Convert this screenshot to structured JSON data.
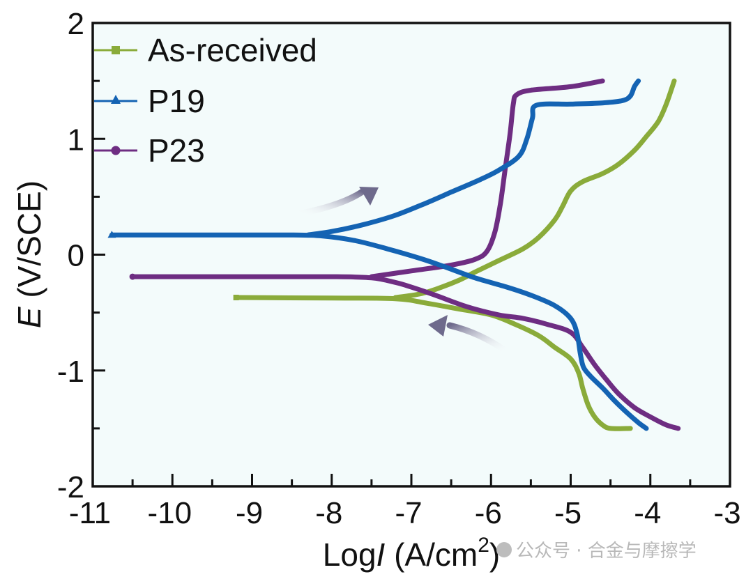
{
  "chart_data": {
    "type": "line",
    "title": "",
    "xlabel": "LogI (A/cm2)",
    "xlabel_parts": {
      "prefix": "Log",
      "italic": "I",
      "suffix": " (A/cm",
      "sup": "2",
      "close": ")"
    },
    "ylabel": "E (V/SCE)",
    "ylabel_parts": {
      "italic": "E",
      "rest": " (V/SCE)"
    },
    "xlim": [
      -11,
      -3
    ],
    "ylim": [
      -2,
      2
    ],
    "xticks": [
      "-11",
      "-10",
      "-9",
      "-8",
      "-7",
      "-6",
      "-5",
      "-4",
      "-3"
    ],
    "yticks": [
      "2",
      "1",
      "0",
      "-1",
      "-2"
    ],
    "grid": false,
    "legend_position": "top-left",
    "annotations": [
      "anodic-scan-arrow (up-right)",
      "cathodic-scan-arrow (left)"
    ],
    "series": [
      {
        "name": "As-received",
        "color": "#8aab3a",
        "marker": "square",
        "start_point": [
          -9.2,
          -0.37
        ],
        "cathodic": [
          [
            -9.2,
            -0.37
          ],
          [
            -8.0,
            -0.375
          ],
          [
            -7.2,
            -0.38
          ],
          [
            -6.8,
            -0.42
          ],
          [
            -6.4,
            -0.47
          ],
          [
            -6.0,
            -0.52
          ],
          [
            -5.7,
            -0.6
          ],
          [
            -5.4,
            -0.7
          ],
          [
            -5.2,
            -0.8
          ],
          [
            -5.0,
            -0.9
          ],
          [
            -4.9,
            -1.02
          ],
          [
            -4.85,
            -1.15
          ],
          [
            -4.78,
            -1.3
          ],
          [
            -4.7,
            -1.4
          ],
          [
            -4.6,
            -1.47
          ],
          [
            -4.5,
            -1.5
          ],
          [
            -4.25,
            -1.5
          ]
        ],
        "anodic": [
          [
            -7.2,
            -0.37
          ],
          [
            -6.9,
            -0.34
          ],
          [
            -6.7,
            -0.3
          ],
          [
            -6.4,
            -0.22
          ],
          [
            -6.2,
            -0.15
          ],
          [
            -5.9,
            -0.05
          ],
          [
            -5.6,
            0.05
          ],
          [
            -5.4,
            0.15
          ],
          [
            -5.2,
            0.3
          ],
          [
            -5.1,
            0.42
          ],
          [
            -5.0,
            0.55
          ],
          [
            -4.85,
            0.63
          ],
          [
            -4.6,
            0.7
          ],
          [
            -4.4,
            0.78
          ],
          [
            -4.2,
            0.9
          ],
          [
            -4.05,
            1.02
          ],
          [
            -3.9,
            1.15
          ],
          [
            -3.8,
            1.3
          ],
          [
            -3.7,
            1.5
          ]
        ]
      },
      {
        "name": "P19",
        "color": "#1463b3",
        "marker": "triangle",
        "start_point": [
          -10.76,
          0.17
        ],
        "cathodic": [
          [
            -10.76,
            0.17
          ],
          [
            -9.5,
            0.17
          ],
          [
            -8.5,
            0.17
          ],
          [
            -8.1,
            0.16
          ],
          [
            -7.7,
            0.12
          ],
          [
            -7.3,
            0.05
          ],
          [
            -6.9,
            -0.03
          ],
          [
            -6.6,
            -0.1
          ],
          [
            -6.2,
            -0.2
          ],
          [
            -5.8,
            -0.28
          ],
          [
            -5.5,
            -0.35
          ],
          [
            -5.2,
            -0.44
          ],
          [
            -5.0,
            -0.55
          ],
          [
            -4.92,
            -0.68
          ],
          [
            -4.88,
            -0.85
          ],
          [
            -4.84,
            -0.97
          ],
          [
            -4.75,
            -1.05
          ],
          [
            -4.6,
            -1.15
          ],
          [
            -4.45,
            -1.26
          ],
          [
            -4.3,
            -1.36
          ],
          [
            -4.15,
            -1.45
          ],
          [
            -4.05,
            -1.5
          ]
        ],
        "anodic": [
          [
            -8.3,
            0.17
          ],
          [
            -8.0,
            0.2
          ],
          [
            -7.6,
            0.26
          ],
          [
            -7.2,
            0.34
          ],
          [
            -6.8,
            0.45
          ],
          [
            -6.5,
            0.54
          ],
          [
            -6.13,
            0.65
          ],
          [
            -5.9,
            0.73
          ],
          [
            -5.65,
            0.85
          ],
          [
            -5.55,
            1.0
          ],
          [
            -5.48,
            1.18
          ],
          [
            -5.43,
            1.29
          ],
          [
            -5.0,
            1.3
          ],
          [
            -4.6,
            1.31
          ],
          [
            -4.35,
            1.33
          ],
          [
            -4.25,
            1.37
          ],
          [
            -4.2,
            1.45
          ],
          [
            -4.15,
            1.5
          ]
        ]
      },
      {
        "name": "P23",
        "color": "#6e2d82",
        "marker": "circle",
        "start_point": [
          -10.5,
          -0.19
        ],
        "cathodic": [
          [
            -10.5,
            -0.19
          ],
          [
            -9.0,
            -0.19
          ],
          [
            -8.0,
            -0.19
          ],
          [
            -7.5,
            -0.2
          ],
          [
            -7.2,
            -0.24
          ],
          [
            -7.0,
            -0.28
          ],
          [
            -6.7,
            -0.35
          ],
          [
            -6.3,
            -0.45
          ],
          [
            -5.9,
            -0.52
          ],
          [
            -5.6,
            -0.55
          ],
          [
            -5.3,
            -0.6
          ],
          [
            -5.0,
            -0.67
          ],
          [
            -4.85,
            -0.8
          ],
          [
            -4.7,
            -0.95
          ],
          [
            -4.55,
            -1.08
          ],
          [
            -4.4,
            -1.2
          ],
          [
            -4.2,
            -1.32
          ],
          [
            -4.0,
            -1.4
          ],
          [
            -3.8,
            -1.47
          ],
          [
            -3.65,
            -1.5
          ]
        ],
        "anodic": [
          [
            -7.5,
            -0.19
          ],
          [
            -7.0,
            -0.14
          ],
          [
            -6.5,
            -0.09
          ],
          [
            -6.2,
            -0.04
          ],
          [
            -6.05,
            0.03
          ],
          [
            -5.95,
            0.2
          ],
          [
            -5.88,
            0.45
          ],
          [
            -5.82,
            0.75
          ],
          [
            -5.76,
            1.05
          ],
          [
            -5.72,
            1.3
          ],
          [
            -5.68,
            1.38
          ],
          [
            -5.5,
            1.42
          ],
          [
            -5.0,
            1.45
          ],
          [
            -4.6,
            1.5
          ]
        ]
      }
    ]
  },
  "watermark": {
    "text": "公众号 · 合金与摩擦学"
  }
}
